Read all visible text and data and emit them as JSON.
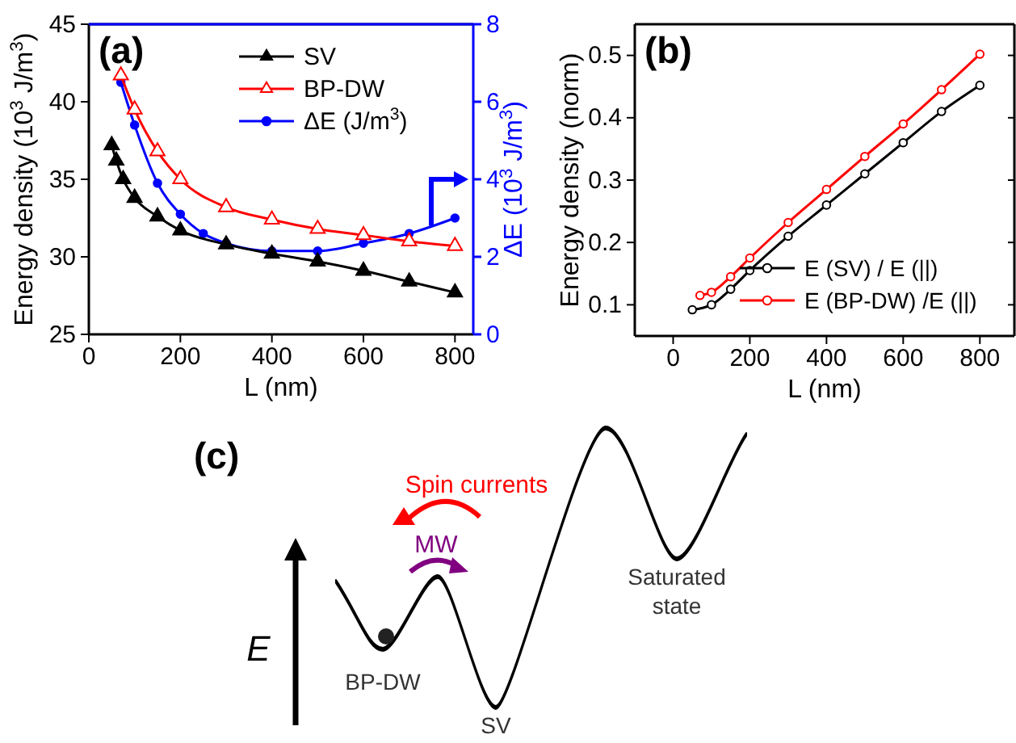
{
  "chart_data": [
    {
      "type": "line",
      "title": "(a)",
      "xlabel": "L (nm)",
      "ylabel": "Energy density (10$^{3}$ J/m$^{3}$)",
      "y2label": "ΔE (10$^{3}$ J/m$^{3}$)",
      "xlim": [
        0,
        840
      ],
      "xticks": [
        0,
        200,
        400,
        600,
        800
      ],
      "ylim": [
        25,
        45
      ],
      "yticks": [
        25,
        30,
        35,
        40,
        45
      ],
      "y2lim": [
        0,
        8
      ],
      "y2ticks": [
        0,
        2,
        4,
        6,
        8
      ],
      "legend": "top right",
      "grid": false,
      "series": [
        {
          "name": "SV",
          "color": "#000000",
          "marker": "triangle",
          "x": [
            50,
            60,
            75,
            100,
            150,
            200,
            300,
            400,
            500,
            600,
            700,
            800
          ],
          "values": [
            37.2,
            36.2,
            35,
            33.8,
            32.6,
            31.7,
            30.8,
            30.2,
            29.7,
            29.1,
            28.4,
            27.7
          ]
        },
        {
          "name": "BP-DW",
          "color": "#ff0000",
          "marker": "triangle",
          "x": [
            70,
            100,
            150,
            200,
            300,
            400,
            500,
            600,
            700,
            800
          ],
          "values": [
            41.7,
            39.5,
            36.8,
            35,
            33.2,
            32.4,
            31.8,
            31.4,
            31,
            30.7
          ]
        },
        {
          "name": "ΔE (J/m$^{3}$)",
          "color": "#0000ff",
          "marker": "circle",
          "axis": "y2",
          "x": [
            70,
            100,
            150,
            200,
            250,
            300,
            400,
            500,
            600,
            700,
            800
          ],
          "values": [
            6.5,
            5.4,
            3.9,
            3.1,
            2.6,
            2.35,
            2.15,
            2.15,
            2.35,
            2.6,
            3
          ]
        }
      ]
    },
    {
      "type": "line",
      "title": "(b)",
      "xlabel": "L (nm)",
      "ylabel": "Energy density (norm)",
      "xlim": [
        -100,
        890
      ],
      "xticks": [
        0,
        200,
        400,
        600,
        800
      ],
      "ylim": [
        0.05,
        0.55
      ],
      "yticks": [
        0.1,
        0.2,
        0.3,
        0.4,
        0.5
      ],
      "legend": "bottom right",
      "grid": false,
      "marker": "circle",
      "series": [
        {
          "name": "E (SV) / E (||)",
          "color": "#000000",
          "x": [
            50,
            100,
            150,
            200,
            300,
            400,
            500,
            600,
            700,
            800
          ],
          "values": [
            0.092,
            0.1,
            0.125,
            0.155,
            0.21,
            0.26,
            0.31,
            0.36,
            0.41,
            0.452
          ]
        },
        {
          "name": "E (BP-DW) /E (||)",
          "color": "#ff0000",
          "x": [
            70,
            100,
            150,
            200,
            300,
            400,
            500,
            600,
            700,
            800
          ],
          "values": [
            0.115,
            0.12,
            0.145,
            0.175,
            0.232,
            0.285,
            0.338,
            0.39,
            0.445,
            0.502
          ]
        }
      ]
    },
    {
      "type": "other",
      "title": "(c)",
      "annotations": [
        "Spin currents",
        "MW",
        "E",
        "BP-DW",
        "SV",
        "Saturated state"
      ]
    }
  ]
}
